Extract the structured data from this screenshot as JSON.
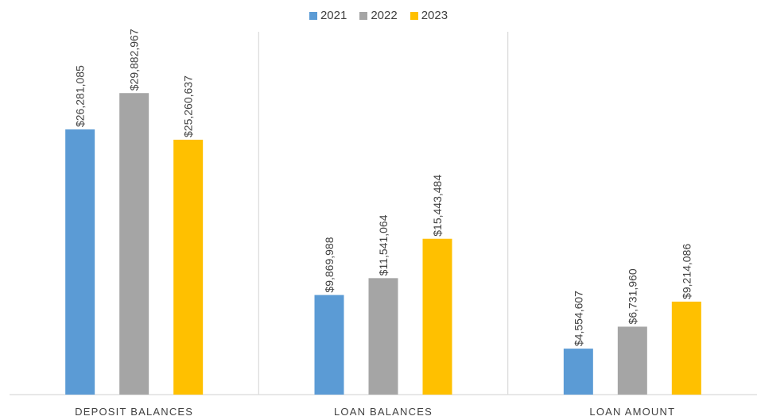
{
  "chart_data": {
    "type": "bar",
    "title": "",
    "xlabel": "",
    "ylabel": "",
    "categories": [
      "DEPOSIT BALANCES",
      "LOAN BALANCES",
      "LOAN AMOUNT"
    ],
    "series": [
      {
        "name": "2021",
        "color": "#5B9BD5",
        "values": [
          26281085,
          9869988,
          4554607
        ],
        "labels": [
          "$26,281,085",
          "$9,869,988",
          "$4,554,607"
        ]
      },
      {
        "name": "2022",
        "color": "#A5A5A5",
        "values": [
          29882967,
          11541064,
          6731960
        ],
        "labels": [
          "$29,882,967",
          "$11,541,064",
          "$6,731,960"
        ]
      },
      {
        "name": "2023",
        "color": "#FFC000",
        "values": [
          25260637,
          15443484,
          9214086
        ],
        "labels": [
          "$25,260,637",
          "$15,443,484",
          "$9,214,086"
        ]
      }
    ],
    "ylim": [
      0,
      36000000
    ],
    "grid": false,
    "legend_position": "top-center"
  }
}
